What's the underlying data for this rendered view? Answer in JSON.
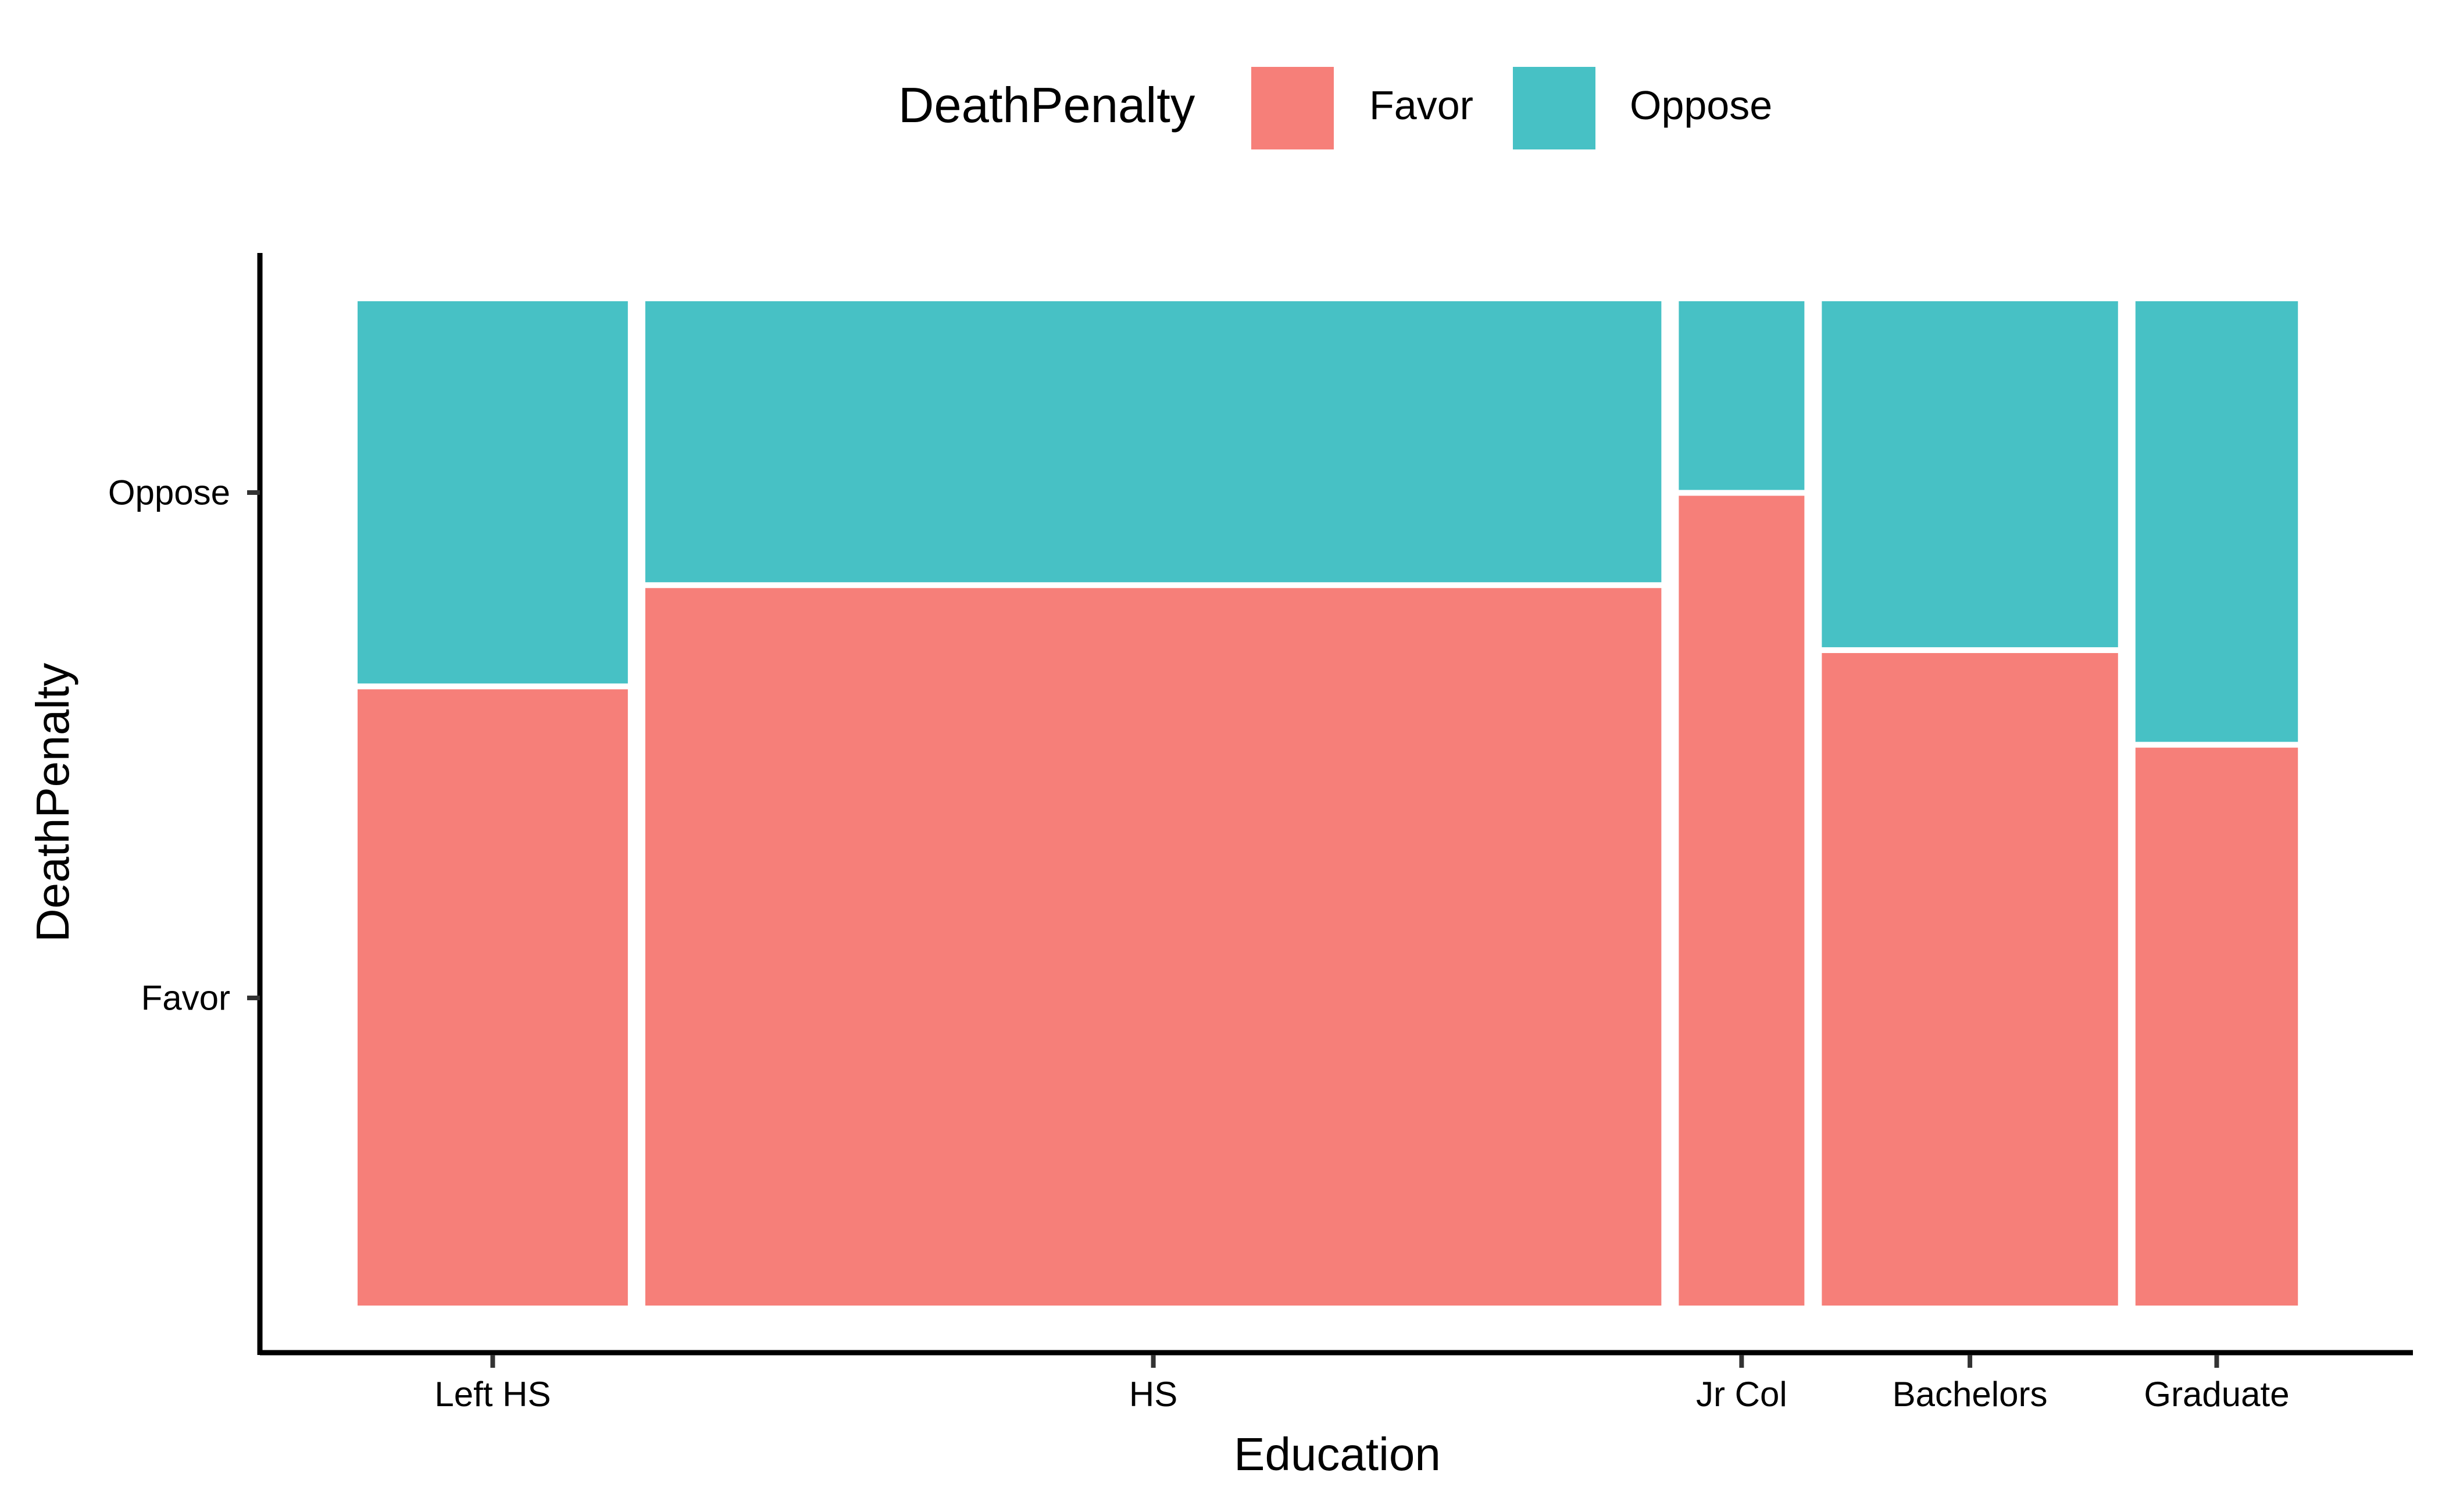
{
  "chart_data": {
    "type": "mosaic",
    "title": "",
    "xlabel": "Education",
    "ylabel": "DeathPenalty",
    "x_categories": [
      "Left HS",
      "HS",
      "Jr Col",
      "Bachelors",
      "Graduate"
    ],
    "x_marginal_proportions": [
      0.1429,
      0.5372,
      0.0664,
      0.1566,
      0.0859
    ],
    "y_categories": [
      "Favor",
      "Oppose"
    ],
    "y_tick_labels": [
      "Favor",
      "Oppose"
    ],
    "series": [
      {
        "name": "Favor",
        "values": [
          0.6165,
          0.7173,
          0.8092,
          0.6526,
          0.5584
        ]
      },
      {
        "name": "Oppose",
        "values": [
          0.3835,
          0.2827,
          0.1908,
          0.3474,
          0.4416
        ]
      }
    ],
    "legend": {
      "title": "DeathPenalty",
      "position": "top",
      "items": [
        "Favor",
        "Oppose"
      ]
    },
    "colors": {
      "Favor": "#F67F79",
      "Oppose": "#47C1C5"
    },
    "grid": false
  }
}
